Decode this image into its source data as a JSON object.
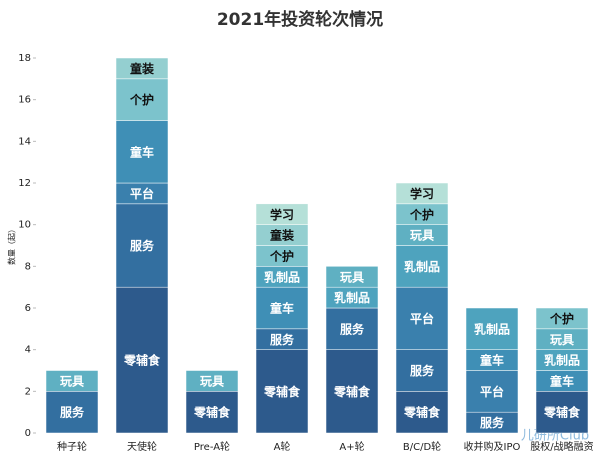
{
  "chart_data": {
    "type": "stacked-bar",
    "title": "2021年投资轮次情况",
    "y_label": "数量（起）",
    "watermark": "儿研所Club",
    "categories": [
      "种子轮",
      "天使轮",
      "Pre-A轮",
      "A轮",
      "A+轮",
      "B/C/D轮",
      "收并购及IPO",
      "股权/战略融资"
    ],
    "series": [
      {
        "name": "零辅食",
        "color": "#2d5a8c",
        "values": [
          null,
          7,
          2,
          4,
          4,
          2,
          null,
          2
        ]
      },
      {
        "name": "服务",
        "color": "#336fa0",
        "values": [
          2,
          4,
          null,
          1,
          2,
          2,
          1,
          null
        ]
      },
      {
        "name": "平台",
        "color": "#3a80ad",
        "values": [
          null,
          1,
          null,
          null,
          null,
          3,
          2,
          null
        ]
      },
      {
        "name": "童车",
        "color": "#3f8fb6",
        "values": [
          null,
          3,
          null,
          2,
          null,
          null,
          1,
          1
        ]
      },
      {
        "name": "乳制品",
        "color": "#4ea3be",
        "values": [
          null,
          null,
          null,
          1,
          1,
          2,
          2,
          1
        ]
      },
      {
        "name": "玩具",
        "color": "#5fb0c2",
        "values": [
          1,
          null,
          1,
          null,
          1,
          1,
          null,
          1
        ]
      },
      {
        "name": "个护",
        "color": "#7cc3cc",
        "values": [
          null,
          2,
          null,
          1,
          null,
          1,
          null,
          1
        ]
      },
      {
        "name": "童装",
        "color": "#94cfd0",
        "values": [
          null,
          1,
          null,
          1,
          null,
          null,
          null,
          null
        ]
      },
      {
        "name": "学习",
        "color": "#b5e0d8",
        "values": [
          null,
          null,
          null,
          1,
          null,
          1,
          null,
          null
        ]
      }
    ],
    "ylim": [
      0,
      18
    ],
    "yticks": [
      0,
      2,
      4,
      6,
      8,
      10,
      12,
      14,
      16,
      18
    ]
  }
}
